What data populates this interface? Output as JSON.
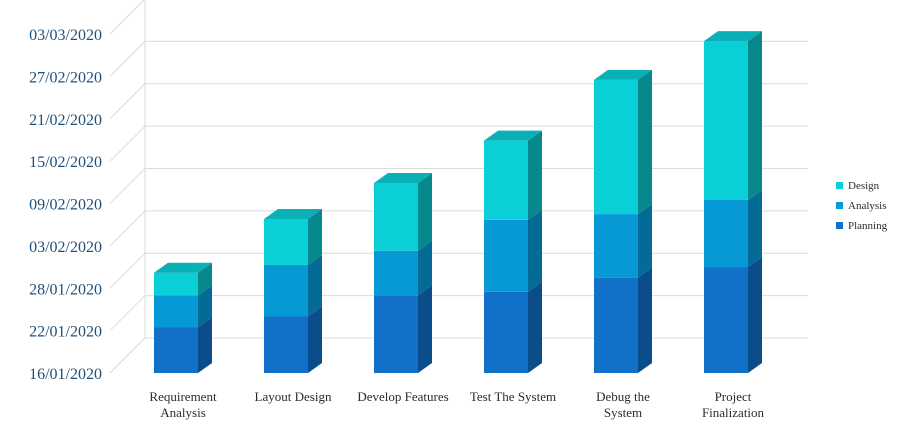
{
  "chart_data": {
    "type": "bar",
    "stacked": true,
    "three_d": true,
    "categories": [
      [
        "Requirement",
        "Analysis"
      ],
      [
        "Layout  Design"
      ],
      [
        "Develop Features"
      ],
      [
        "Test The System"
      ],
      [
        "Debug the",
        "System"
      ],
      [
        "Project",
        "Finalization"
      ]
    ],
    "y_ticks": [
      "16/01/2020",
      "22/01/2020",
      "28/01/2020",
      "03/02/2020",
      "09/02/2020",
      "15/02/2020",
      "21/02/2020",
      "27/02/2020",
      "03/03/2020"
    ],
    "ylim_days": [
      0,
      48
    ],
    "series": [
      {
        "name": "Planning",
        "color": "#1170c7",
        "side_color": "#0a4d8a",
        "values": [
          6.5,
          8,
          11,
          11.5,
          13.5,
          15
        ]
      },
      {
        "name": "Analysis",
        "color": "#0699d6",
        "side_color": "#046a96",
        "values": [
          4.5,
          7.3,
          6.3,
          10.2,
          9,
          9.5
        ]
      },
      {
        "name": "Design",
        "color": "#0bcfd6",
        "side_color": "#07888c",
        "values": [
          3.2,
          6.5,
          9.6,
          11.2,
          19,
          22.5
        ]
      }
    ],
    "legend_position": "right",
    "grid": true
  }
}
